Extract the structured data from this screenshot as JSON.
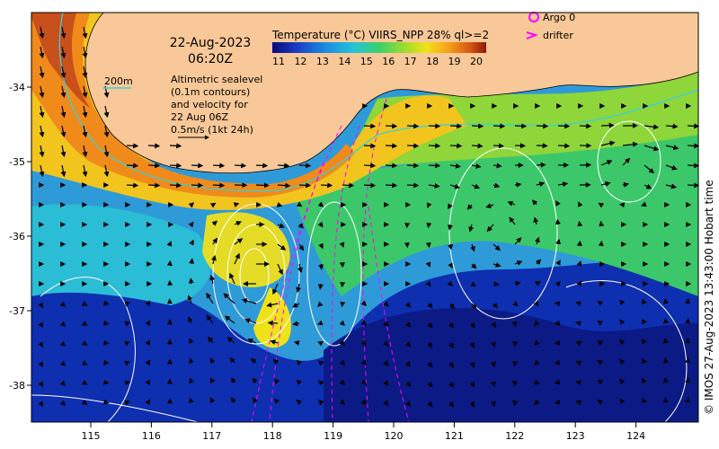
{
  "date": "22-Aug-2023",
  "time": "06:20Z",
  "colorbar": {
    "title": "Temperature (°C) VIIRS_NPP 28% ql>=2",
    "ticks": [
      "11",
      "12",
      "13",
      "14",
      "15",
      "16",
      "17",
      "18",
      "19",
      "20"
    ],
    "colors": [
      "#0b0b7a",
      "#1a3fc9",
      "#1a8ee0",
      "#27c2d8",
      "#3ad06a",
      "#9fdc2a",
      "#f0e21a",
      "#f6a21a",
      "#d95a14",
      "#8a1a0c"
    ]
  },
  "legend": {
    "argo": "Argo 0",
    "drifter": "drifter",
    "argo_color": "#ff00ff",
    "drifter_color": "#ff00ff"
  },
  "depth_label": "200m",
  "altimetry_note": [
    "Altimetric sealevel",
    "(0.1m contours)",
    "and velocity for",
    "22 Aug 06Z",
    "0.5m/s (1kt 24h)"
  ],
  "credit": "© IMOS 27-Aug-2023 13:43:00 Hobart time",
  "x_ticks": [
    "115",
    "116",
    "117",
    "118",
    "119",
    "120",
    "121",
    "122",
    "123",
    "124"
  ],
  "y_ticks": [
    "-34",
    "-35",
    "-36",
    "-37",
    "-38"
  ],
  "land_color": "#f8c898"
}
